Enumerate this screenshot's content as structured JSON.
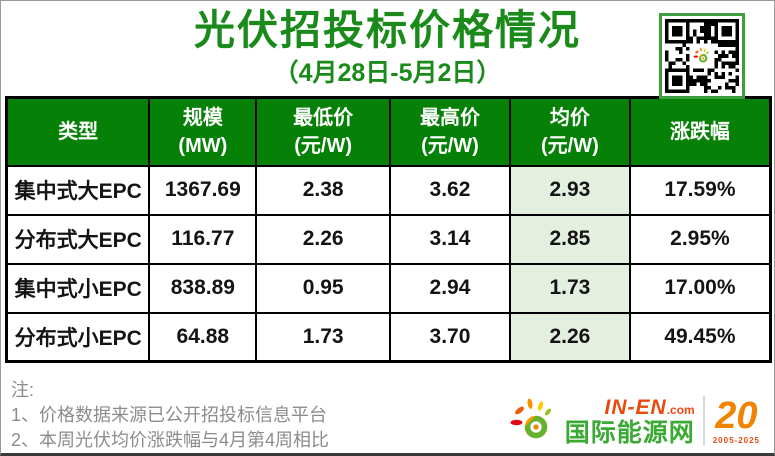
{
  "page": {
    "title": "光伏招投标价格情况",
    "subtitle": "（4月28日-5月2日）"
  },
  "table": {
    "headers": [
      {
        "line1": "类型",
        "line2": ""
      },
      {
        "line1": "规模",
        "line2": "(MW)"
      },
      {
        "line1": "最低价",
        "line2": "(元/W)"
      },
      {
        "line1": "最高价",
        "line2": "(元/W)"
      },
      {
        "line1": "均价",
        "line2": "(元/W)"
      },
      {
        "line1": "涨跌幅",
        "line2": ""
      }
    ],
    "rows": [
      {
        "type": "集中式大EPC",
        "scale": "1367.69",
        "min": "2.38",
        "max": "3.62",
        "avg": "2.93",
        "change": "17.59%"
      },
      {
        "type": "分布式大EPC",
        "scale": "116.77",
        "min": "2.26",
        "max": "3.14",
        "avg": "2.85",
        "change": "2.95%"
      },
      {
        "type": "集中式小EPC",
        "scale": "838.89",
        "min": "0.95",
        "max": "2.94",
        "avg": "1.73",
        "change": "17.00%"
      },
      {
        "type": "分布式小EPC",
        "scale": "64.88",
        "min": "1.73",
        "max": "3.70",
        "avg": "2.26",
        "change": "49.45%"
      }
    ]
  },
  "notes": {
    "label": "注:",
    "items": [
      "1、价格数据来源已公开招投标信息平台",
      "2、本周光伏均价涨跌幅与4月第4周相比"
    ]
  },
  "footer": {
    "brand_en": "IN-EN",
    "brand_domain": ".com",
    "brand_cn": "国际能源网",
    "anniversary": "20",
    "anniversary_years": "2005-2025"
  },
  "colors": {
    "title_green": "#1a8a1a",
    "header_green": "#068006",
    "avg_column_bg": "#e4efdf",
    "note_gray": "#8c8c8c",
    "brand_orange": "#e8490f",
    "brand_green": "#3aaa35",
    "anniv_orange": "#f08300"
  },
  "chart_data": {
    "type": "table",
    "title": "光伏招投标价格情况",
    "subtitle": "（4月28日-5月2日）",
    "columns": [
      "类型",
      "规模(MW)",
      "最低价(元/W)",
      "最高价(元/W)",
      "均价(元/W)",
      "涨跌幅"
    ],
    "rows": [
      [
        "集中式大EPC",
        1367.69,
        2.38,
        3.62,
        2.93,
        "17.59%"
      ],
      [
        "分布式大EPC",
        116.77,
        2.26,
        3.14,
        2.85,
        "2.95%"
      ],
      [
        "集中式小EPC",
        838.89,
        0.95,
        2.94,
        1.73,
        "17.00%"
      ],
      [
        "分布式小EPC",
        64.88,
        1.73,
        3.7,
        2.26,
        "49.45%"
      ]
    ],
    "highlight_column": "均价(元/W)",
    "notes": [
      "价格数据来源已公开招投标信息平台",
      "本周光伏均价涨跌幅与4月第4周相比"
    ]
  }
}
